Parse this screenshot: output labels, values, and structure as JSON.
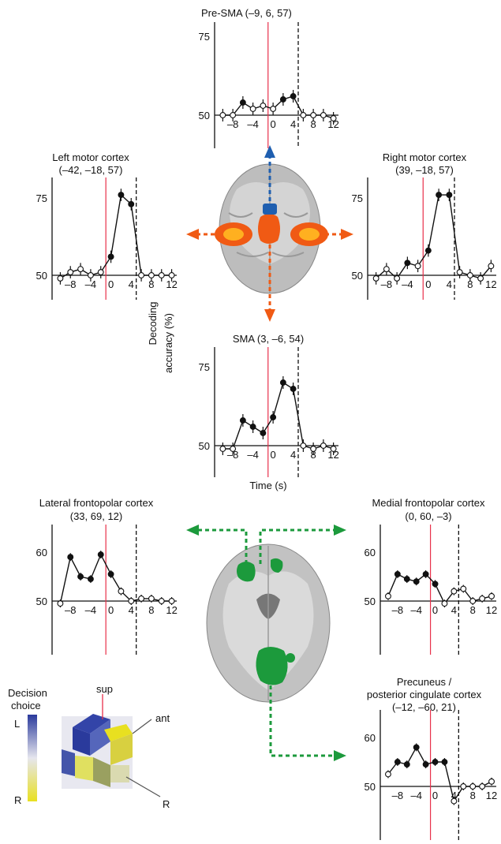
{
  "colors": {
    "onset_line": "#e8304a",
    "point_sig": "#111111",
    "point_ns": "#ffffff",
    "motor_blob": "#f05a14",
    "presma_blob": "#1f5fb0",
    "frontopolar_blob": "#1c9a3c",
    "legend_left": "#2a3a9c",
    "legend_right": "#e8e020"
  },
  "labels": {
    "decoding_ylabel_1": "Decoding",
    "decoding_ylabel_2": "accuracy (%)",
    "time_xlabel": "Time (s)",
    "legend_title_1": "Decision",
    "legend_title_2": "choice",
    "legend_L": "L",
    "legend_R": "R",
    "axis_sup": "sup",
    "axis_ant": "ant",
    "axis_R": "R"
  },
  "chart_data": [
    {
      "type": "line",
      "title": "Pre-SMA (–9, 6, 57)",
      "yticks": [
        "75",
        "50"
      ],
      "ylim": [
        50,
        75
      ],
      "xticks": [
        "–8",
        "–4",
        "0",
        "4",
        "8",
        "12"
      ],
      "xlim": [
        -11,
        13
      ],
      "x": [
        -10,
        -8,
        -6,
        -4,
        -2,
        0,
        2,
        4,
        6,
        8,
        10,
        12
      ],
      "values": [
        50,
        50,
        54,
        52,
        53,
        52,
        55,
        56,
        50,
        50,
        50,
        49
      ],
      "significant": [
        false,
        false,
        true,
        false,
        false,
        false,
        true,
        true,
        false,
        false,
        false,
        false
      ]
    },
    {
      "type": "line",
      "title": "Left motor cortex",
      "subtitle": "(–42, –18, 57)",
      "yticks": [
        "75",
        "50"
      ],
      "ylim": [
        50,
        75
      ],
      "xticks": [
        "–8",
        "–4",
        "0",
        "4",
        "8",
        "12"
      ],
      "xlim": [
        -11,
        13
      ],
      "x": [
        -10,
        -8,
        -6,
        -4,
        -2,
        0,
        2,
        4,
        6,
        8,
        10,
        12
      ],
      "values": [
        49,
        51,
        52,
        50,
        51,
        56,
        76,
        73,
        50,
        50,
        50,
        50
      ],
      "significant": [
        false,
        false,
        false,
        false,
        false,
        true,
        true,
        true,
        false,
        false,
        false,
        false
      ]
    },
    {
      "type": "line",
      "title": "Right motor cortex",
      "subtitle": "(39, –18, 57)",
      "yticks": [
        "75",
        "50"
      ],
      "ylim": [
        50,
        75
      ],
      "xticks": [
        "–8",
        "–4",
        "0",
        "4",
        "8",
        "12"
      ],
      "xlim": [
        -11,
        13
      ],
      "x": [
        -10,
        -8,
        -6,
        -4,
        -2,
        0,
        2,
        4,
        6,
        8,
        10,
        12
      ],
      "values": [
        49,
        52,
        49,
        54,
        53,
        58,
        76,
        76,
        51,
        50,
        49,
        53
      ],
      "significant": [
        false,
        false,
        false,
        true,
        false,
        true,
        true,
        true,
        false,
        false,
        false,
        false
      ]
    },
    {
      "type": "line",
      "title": "SMA (3, –6, 54)",
      "yticks": [
        "75",
        "50"
      ],
      "ylim": [
        50,
        75
      ],
      "xticks": [
        "–8",
        "–4",
        "0",
        "4",
        "8",
        "12"
      ],
      "xlim": [
        -11,
        13
      ],
      "x": [
        -10,
        -8,
        -6,
        -4,
        -2,
        0,
        2,
        4,
        6,
        8,
        10,
        12
      ],
      "values": [
        49,
        49,
        58,
        56,
        54,
        59,
        70,
        68,
        50,
        49,
        50,
        49
      ],
      "significant": [
        false,
        false,
        true,
        true,
        true,
        true,
        true,
        true,
        false,
        false,
        false,
        false
      ]
    },
    {
      "type": "line",
      "title": "Lateral frontopolar cortex",
      "subtitle": "(33, 69, 12)",
      "yticks": [
        "60",
        "50"
      ],
      "ylim": [
        50,
        60
      ],
      "xticks": [
        "–8",
        "–4",
        "0",
        "4",
        "8",
        "12"
      ],
      "xlim": [
        -11,
        13
      ],
      "x": [
        -10,
        -8,
        -6,
        -4,
        -2,
        0,
        2,
        4,
        6,
        8,
        10,
        12
      ],
      "values": [
        49.5,
        59,
        55,
        54.5,
        59.5,
        55.5,
        52,
        50,
        50.5,
        50.5,
        50,
        50
      ],
      "significant": [
        false,
        true,
        true,
        true,
        true,
        true,
        false,
        false,
        false,
        false,
        false,
        false
      ]
    },
    {
      "type": "line",
      "title": "Medial frontopolar cortex",
      "subtitle": "(0, 60, –3)",
      "yticks": [
        "60",
        "50"
      ],
      "ylim": [
        50,
        60
      ],
      "xticks": [
        "–8",
        "–4",
        "0",
        "4",
        "8",
        "12"
      ],
      "xlim": [
        -11,
        13
      ],
      "x": [
        -10,
        -8,
        -6,
        -4,
        -2,
        0,
        2,
        4,
        6,
        8,
        10,
        12
      ],
      "values": [
        51,
        55.5,
        54.5,
        54,
        55.5,
        53.5,
        49.5,
        52,
        52.5,
        50,
        50.5,
        51
      ],
      "significant": [
        false,
        true,
        true,
        true,
        true,
        true,
        false,
        false,
        false,
        false,
        false,
        false
      ]
    },
    {
      "type": "line",
      "title": "Precuneus /",
      "subtitle": "posterior cingulate cortex",
      "subtitle2": "(–12, –60, 21)",
      "yticks": [
        "60",
        "50"
      ],
      "ylim": [
        50,
        60
      ],
      "xticks": [
        "–8",
        "–4",
        "0",
        "4",
        "8",
        "12"
      ],
      "xlim": [
        -11,
        13
      ],
      "x": [
        -10,
        -8,
        -6,
        -4,
        -2,
        0,
        2,
        4,
        6,
        8,
        10,
        12
      ],
      "values": [
        52.5,
        55,
        54.5,
        58,
        54.5,
        55,
        55,
        47,
        50,
        50,
        50,
        51
      ],
      "significant": [
        false,
        true,
        true,
        true,
        true,
        true,
        true,
        false,
        false,
        false,
        false,
        false
      ]
    }
  ]
}
